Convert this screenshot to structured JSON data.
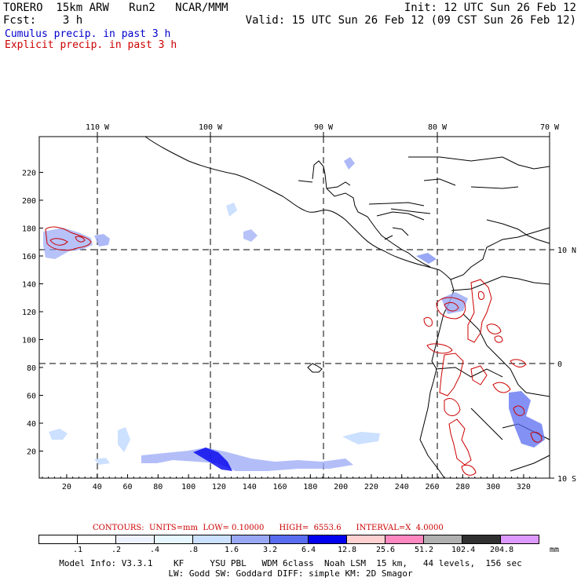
{
  "header": {
    "line1_left": "TORERO  15km ARW   Run2   NCAR/MMM",
    "line1_right": "Init: 12 UTC Sun 26 Feb 12",
    "line2_left": "Fcst:    3 h",
    "line2_right": "Valid: 15 UTC Sun 26 Feb 12 (09 CST Sun 26 Feb 12)",
    "legend_cumulus": "Cumulus precip. in past 3 h",
    "legend_explicit": "Explicit precip. in past 3 h"
  },
  "colors": {
    "cumulus": "#0000cc",
    "explicit": "#cc0000",
    "grid_dash": "#000000"
  },
  "map": {
    "lon_labels": [
      "110 W",
      "100 W",
      "90 W",
      "80 W",
      "70 W"
    ],
    "lat_labels": [
      "10 N",
      "0",
      "10 S"
    ],
    "x_ticks": [
      "20",
      "40",
      "60",
      "80",
      "100",
      "120",
      "140",
      "160",
      "180",
      "200",
      "220",
      "240",
      "260",
      "280",
      "300",
      "320"
    ],
    "y_ticks": [
      "20",
      "40",
      "60",
      "80",
      "100",
      "120",
      "140",
      "160",
      "180",
      "200",
      "220"
    ]
  },
  "contours": {
    "text": "CONTOURS:  UNITS=mm  LOW= 0.10000      HIGH=  6553.6      INTERVAL=X  4.0000"
  },
  "colorbar": {
    "colors": [
      "#ffffff",
      "#ffffff",
      "#eef2ff",
      "#e6f7ff",
      "#cce0ff",
      "#99a8f5",
      "#5a6cf0",
      "#0000ee",
      "#ffd0d0",
      "#ff88c0",
      "#b0b0b0",
      "#303030",
      "#dd99ff"
    ],
    "labels": [
      ".1",
      ".2",
      ".4",
      ".8",
      "1.6",
      "3.2",
      "6.4",
      "12.8",
      "25.6",
      "51.2",
      "102.4",
      "204.8"
    ],
    "unit": "mm"
  },
  "footer": {
    "line1": "Model Info: V3.3.1    KF     YSU PBL   WDM 6class  Noah LSM  15 km,   44 levels,  156 sec",
    "line2": "LW: Godd SW: Goddard DIFF: simple KM: 2D Smagor"
  }
}
